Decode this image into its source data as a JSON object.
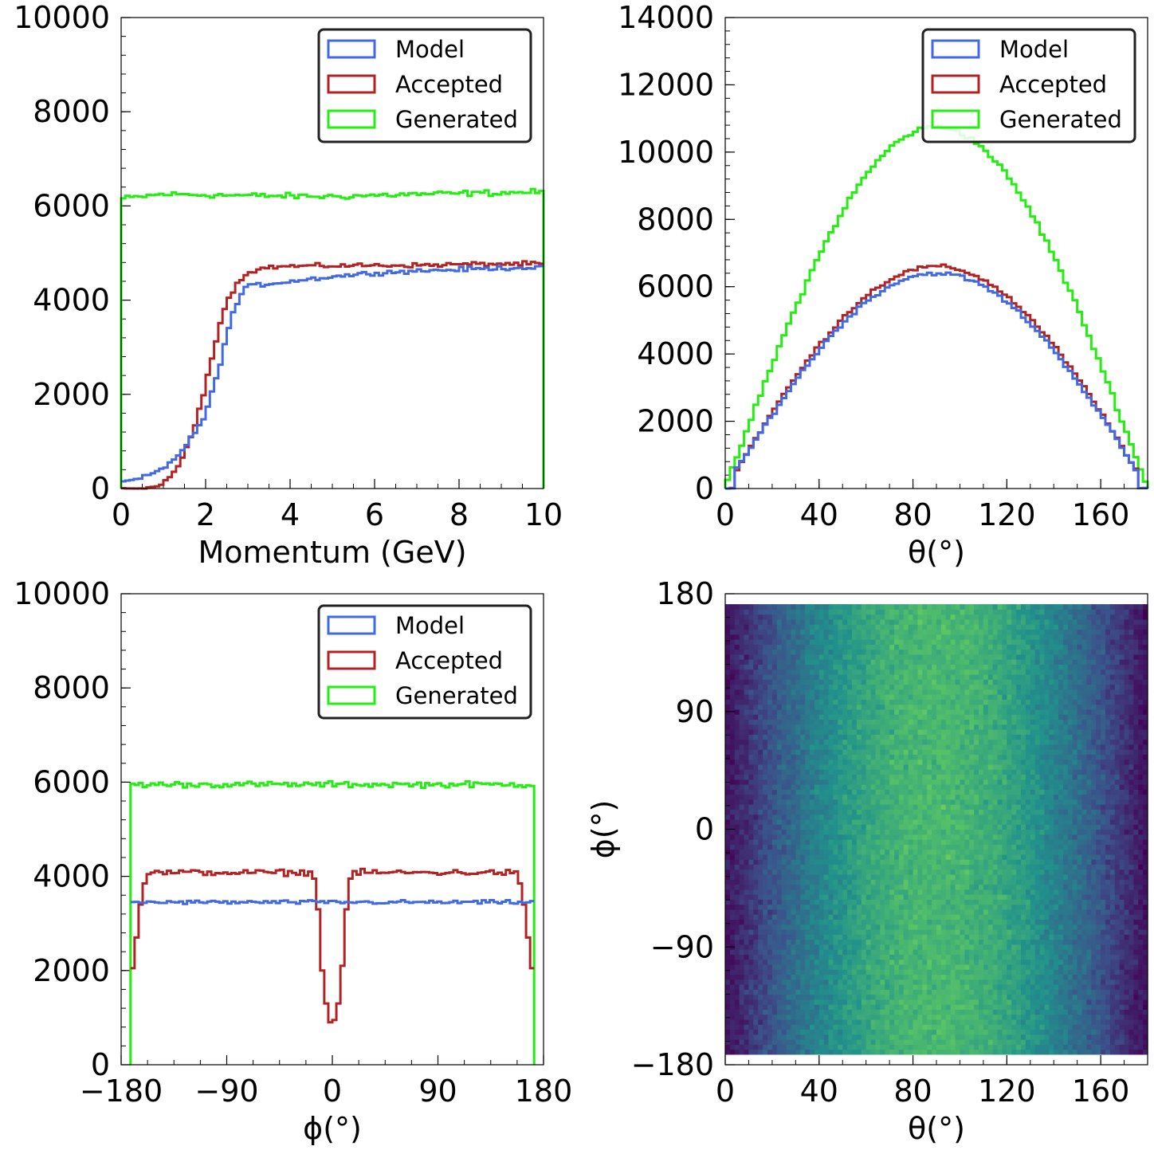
{
  "colors": {
    "model": "#4169e1",
    "accepted": "#b22222",
    "generated": "#22ee10",
    "heatmap_colormap": "viridis"
  },
  "chart_data": [
    {
      "id": "momentum",
      "type": "histogram-step",
      "xlabel": "Momentum (GeV)",
      "ylabel": "",
      "xlim": [
        0,
        10
      ],
      "ylim": [
        0,
        10000
      ],
      "xticks": [
        0,
        2,
        4,
        6,
        8,
        10
      ],
      "yticks": [
        0,
        2000,
        4000,
        6000,
        8000,
        10000
      ],
      "legend_position": "top-right",
      "legend": [
        "Model",
        "Accepted",
        "Generated"
      ],
      "bins": 100,
      "series": [
        {
          "name": "Model",
          "color": "#4169e1",
          "profile": [
            [
              0,
              140
            ],
            [
              0.5,
              220
            ],
            [
              1.0,
              420
            ],
            [
              1.5,
              850
            ],
            [
              2.0,
              1550
            ],
            [
              2.3,
              2500
            ],
            [
              2.6,
              3600
            ],
            [
              2.9,
              4250
            ],
            [
              3.2,
              4320
            ],
            [
              4,
              4400
            ],
            [
              5,
              4500
            ],
            [
              6,
              4580
            ],
            [
              7,
              4620
            ],
            [
              8,
              4650
            ],
            [
              9,
              4680
            ],
            [
              10,
              4700
            ]
          ]
        },
        {
          "name": "Accepted",
          "color": "#b22222",
          "profile": [
            [
              0,
              0
            ],
            [
              0.5,
              0
            ],
            [
              0.9,
              40
            ],
            [
              1.2,
              300
            ],
            [
              1.5,
              700
            ],
            [
              1.8,
              1500
            ],
            [
              2.0,
              2200
            ],
            [
              2.2,
              3000
            ],
            [
              2.4,
              3700
            ],
            [
              2.6,
              4150
            ],
            [
              2.8,
              4400
            ],
            [
              3.0,
              4600
            ],
            [
              3.5,
              4700
            ],
            [
              4,
              4720
            ],
            [
              5,
              4730
            ],
            [
              6,
              4740
            ],
            [
              7,
              4740
            ],
            [
              8,
              4760
            ],
            [
              9,
              4770
            ],
            [
              10,
              4770
            ]
          ]
        },
        {
          "name": "Generated",
          "color": "#22ee10",
          "profile": [
            [
              0,
              6150
            ],
            [
              1,
              6250
            ],
            [
              3,
              6220
            ],
            [
              5,
              6200
            ],
            [
              7,
              6250
            ],
            [
              9,
              6280
            ],
            [
              10,
              6300
            ]
          ]
        }
      ]
    },
    {
      "id": "theta",
      "type": "histogram-step",
      "xlabel": "θ(°)",
      "ylabel": "",
      "xlim": [
        0,
        180
      ],
      "ylim": [
        0,
        14000
      ],
      "xticks": [
        0,
        40,
        80,
        120,
        160
      ],
      "yticks": [
        0,
        2000,
        4000,
        6000,
        8000,
        10000,
        12000,
        14000
      ],
      "legend_position": "top-right",
      "legend": [
        "Model",
        "Accepted",
        "Generated"
      ],
      "bins": 90,
      "series": [
        {
          "name": "Model",
          "color": "#4169e1",
          "peak": 6400,
          "peak_at": 90
        },
        {
          "name": "Accepted",
          "color": "#b22222",
          "peak": 6600,
          "peak_at": 90
        },
        {
          "name": "Generated",
          "color": "#22ee10",
          "peak": 10750,
          "peak_at": 90
        }
      ]
    },
    {
      "id": "phi",
      "type": "histogram-step",
      "xlabel": "ϕ(°)",
      "ylabel": "",
      "xlim": [
        -180,
        180
      ],
      "ylim": [
        0,
        10000
      ],
      "xticks": [
        -180,
        -90,
        0,
        90,
        180
      ],
      "xtick_labels": [
        "−180",
        "−90",
        "0",
        "90",
        "180"
      ],
      "yticks": [
        0,
        2000,
        4000,
        6000,
        8000,
        10000
      ],
      "legend_position": "top-right",
      "legend": [
        "Model",
        "Accepted",
        "Generated"
      ],
      "bins": 100,
      "range": [
        -172,
        172
      ],
      "series": [
        {
          "name": "Model",
          "color": "#4169e1",
          "level": 3450
        },
        {
          "name": "Accepted",
          "color": "#b22222",
          "level": 4080,
          "edge_values": [
            2050,
            2700,
            3400,
            3850
          ],
          "dip_values": [
            3950,
            3300,
            2000,
            1300,
            900,
            950,
            1300,
            2100,
            3300,
            3950
          ]
        },
        {
          "name": "Generated",
          "color": "#22ee10",
          "level": 5950
        }
      ]
    },
    {
      "id": "theta-phi",
      "type": "heatmap",
      "xlabel": "θ(°)",
      "ylabel": "ϕ(°)",
      "xlim": [
        0,
        180
      ],
      "ylim": [
        -180,
        180
      ],
      "xticks": [
        0,
        40,
        80,
        120,
        160
      ],
      "yticks": [
        -180,
        -90,
        0,
        90,
        180
      ],
      "ytick_labels": [
        "−180",
        "−90",
        "0",
        "90",
        "180"
      ],
      "grid_x_bins": 90,
      "grid_y_bins": 90,
      "data_y_range": [
        -172,
        172
      ],
      "intensity_profile": "sin(theta)"
    }
  ]
}
